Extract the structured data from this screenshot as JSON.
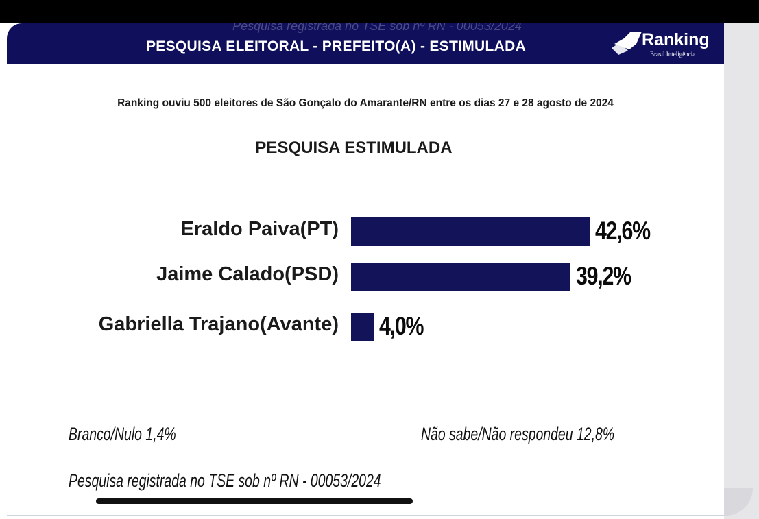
{
  "header": {
    "ghost_text": "Pesquisa registrada no TSE sob nº RN - 00053/2024",
    "title": "PESQUISA ELEITORAL - PREFEITO(A) - ESTIMULADA",
    "logo": {
      "icon": "ranking-logo-icon",
      "name": "Ranking",
      "tagline": "Brasil Inteligência"
    }
  },
  "subtitle": "Ranking ouviu 500 eleitores de São Gonçalo do Amarante/RN entre os dias 27 e 28 agosto de 2024",
  "chart_data": {
    "type": "bar",
    "orientation": "horizontal",
    "title": "PESQUISA ESTIMULADA",
    "categories": [
      "Eraldo Paiva(PT)",
      "Jaime Calado(PSD)",
      "Gabriella Trajano(Avante)"
    ],
    "values": [
      42.6,
      39.2,
      4.0
    ],
    "value_labels": [
      "42,6%",
      "39,2%",
      "4,0%"
    ],
    "xlabel": "",
    "ylabel": "",
    "grid": false,
    "legend": "none",
    "bar_color": "#13135a"
  },
  "notes": {
    "branco_nulo": "Branco/Nulo 1,4%",
    "nao_sabe": "Não sabe/Não respondeu 12,8%",
    "registro": "Pesquisa registrada no TSE sob nº RN - 00053/2024"
  },
  "colors": {
    "header_bg": "#0f0f5c",
    "text": "#1a1a1a"
  }
}
